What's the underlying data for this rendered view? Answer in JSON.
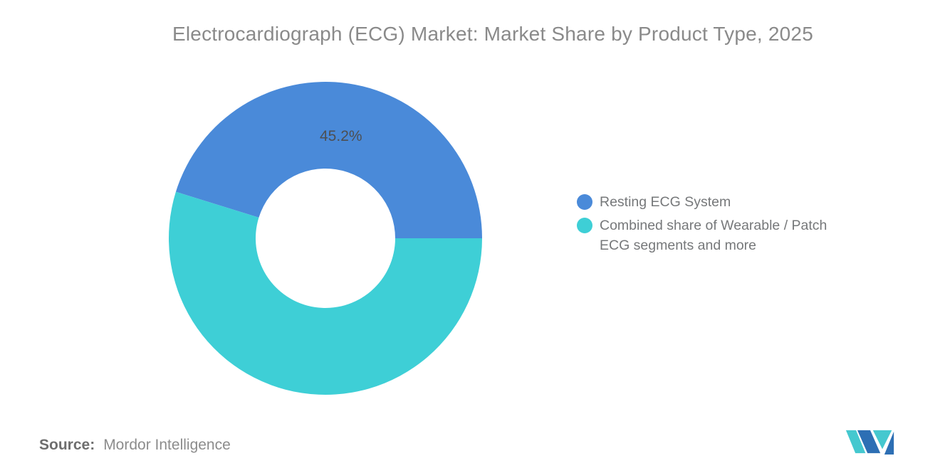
{
  "title": "Electrocardiograph (ECG) Market: Market Share by Product Type, 2025",
  "source": {
    "label": "Source:",
    "name": "Mordor Intelligence"
  },
  "logo": {
    "teal": "#45c8cf",
    "blue": "#2d6fb4"
  },
  "chart_data": {
    "type": "pie",
    "subtype": "donut",
    "title": "Electrocardiograph (ECG) Market: Market Share by Product Type, 2025",
    "slices": [
      {
        "label": "Resting ECG System",
        "value": 45.2,
        "color": "#4a8ad9",
        "data_label": "45.2%"
      },
      {
        "label": "Combined share of Wearable / Patch ECG segments and more",
        "value": 54.8,
        "color": "#3ecfd6",
        "data_label": ""
      }
    ],
    "legend_position": "right",
    "start_angle_deg": 0,
    "direction": "counterclockwise",
    "inner_radius_ratio": 0.445,
    "label_radius": 145,
    "data_label_color": "#4d4f52",
    "background": "#ffffff"
  }
}
